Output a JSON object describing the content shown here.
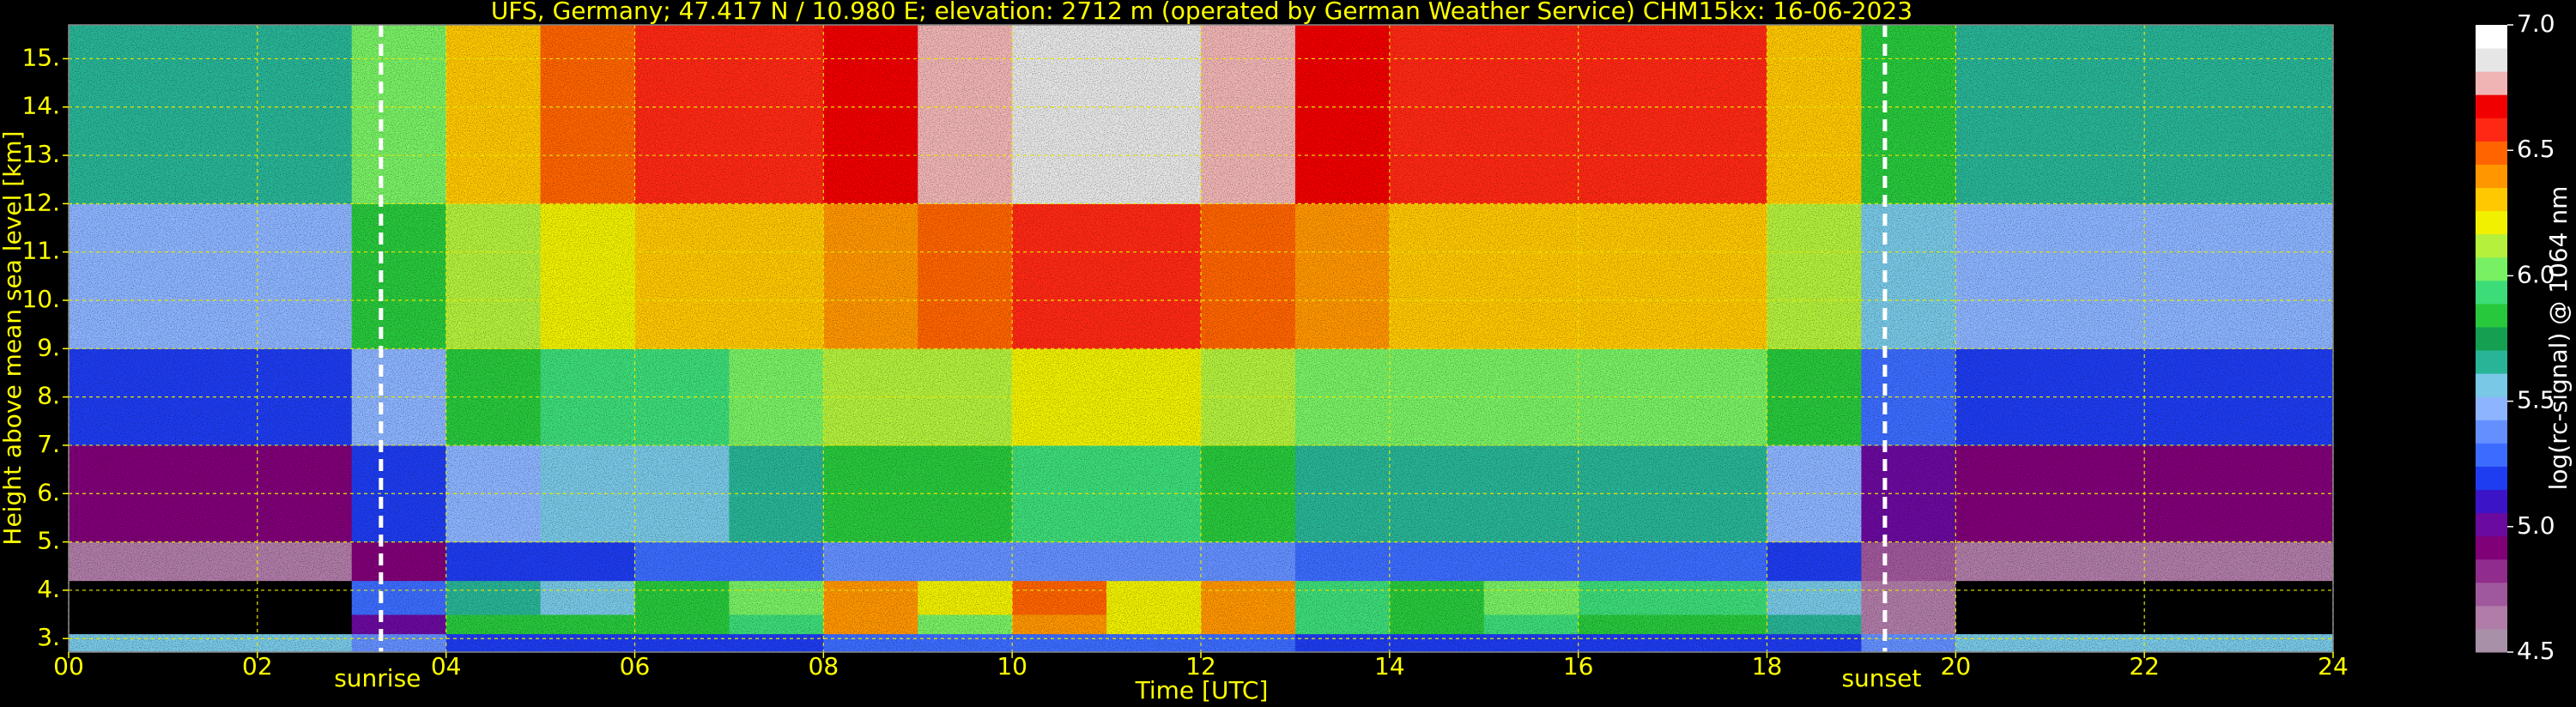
{
  "chart_data": {
    "type": "heatmap",
    "title": "UFS, Germany; 47.417 N / 10.980 E; elevation: 2712 m  (operated by German Weather Service)    CHM15kx: 16-06-2023",
    "xlabel": "Time [UTC]",
    "ylabel": "Height above mean sea level [km]",
    "colorbar_label": "log(rc-signal) @ 1064 nm",
    "xlim": [
      0,
      24
    ],
    "ylim": [
      2.72,
      15.7
    ],
    "xticks": [
      {
        "value": 0,
        "label": "00"
      },
      {
        "value": 2,
        "label": "02"
      },
      {
        "value": 4,
        "label": "04"
      },
      {
        "value": 6,
        "label": "06"
      },
      {
        "value": 8,
        "label": "08"
      },
      10,
      12,
      14,
      16,
      18,
      20,
      22,
      24
    ],
    "yticks": [
      {
        "value": 3,
        "label": "3."
      },
      {
        "value": 4,
        "label": "4."
      },
      {
        "value": 5,
        "label": "5."
      },
      {
        "value": 6,
        "label": "6."
      },
      {
        "value": 7,
        "label": "7."
      },
      {
        "value": 8,
        "label": "8."
      },
      {
        "value": 9,
        "label": "9."
      },
      {
        "value": 10,
        "label": "10."
      },
      {
        "value": 11,
        "label": "11."
      },
      {
        "value": 12,
        "label": "12."
      },
      {
        "value": 13,
        "label": "13."
      },
      {
        "value": 14,
        "label": "14."
      },
      {
        "value": 15,
        "label": "15."
      }
    ],
    "zlim": [
      4.5,
      7.0
    ],
    "zticks": [
      4.5,
      {
        "value": 5,
        "label": "5.0"
      },
      5.5,
      {
        "value": 6,
        "label": "6.0"
      },
      6.5,
      {
        "value": 7,
        "label": "7.0"
      }
    ],
    "grid": true,
    "grid_color": "#e6e600",
    "under_color": "#000000",
    "colormap": [
      "#a890a8",
      "#b07ca8",
      "#a0589c",
      "#902c8c",
      "#800078",
      "#6a0a9e",
      "#3c14c8",
      "#1e3cf0",
      "#3c6cff",
      "#6490ff",
      "#8cb4ff",
      "#78c8e6",
      "#28b496",
      "#14a050",
      "#28c83c",
      "#3cdc78",
      "#78f064",
      "#b4f03c",
      "#f0f000",
      "#ffc800",
      "#ff9600",
      "#ff6400",
      "#ff2814",
      "#f00000",
      "#f0b4b4",
      "#e6e6e6",
      "#ffffff"
    ],
    "x_bins": [
      0,
      1,
      2,
      3,
      4,
      5,
      6,
      7,
      8,
      9,
      10,
      11,
      12,
      13,
      14,
      15,
      16,
      17,
      18,
      19,
      20,
      21,
      22,
      23,
      24
    ],
    "y_bins": [
      2.72,
      3.1,
      3.5,
      4.2,
      5,
      7,
      9,
      12,
      15.7
    ],
    "values": [
      [
        5.6,
        5.6,
        5.6,
        5.4,
        5.2,
        5.2,
        5.2,
        5.2,
        5.3,
        5.3,
        5.3,
        5.3,
        5.3,
        5.2,
        5.2,
        5.2,
        5.2,
        5.2,
        5.2,
        5.4,
        5.6,
        5.6,
        5.6,
        5.6
      ],
      [
        4.4,
        4.4,
        4.4,
        5.0,
        5.8,
        5.8,
        5.8,
        5.9,
        6.4,
        6.0,
        6.4,
        6.2,
        6.4,
        5.9,
        5.8,
        5.9,
        5.8,
        5.8,
        5.7,
        4.6,
        4.4,
        4.4,
        4.4,
        4.4
      ],
      [
        4.4,
        4.4,
        4.4,
        5.3,
        5.7,
        5.6,
        5.8,
        6.0,
        6.4,
        6.2,
        6.5,
        6.2,
        6.4,
        5.9,
        5.8,
        6.0,
        5.9,
        5.9,
        5.6,
        4.6,
        4.4,
        4.4,
        4.4,
        4.4
      ],
      [
        4.6,
        4.6,
        4.6,
        4.9,
        5.2,
        5.2,
        5.3,
        5.3,
        5.4,
        5.4,
        5.4,
        5.4,
        5.4,
        5.3,
        5.3,
        5.3,
        5.3,
        5.3,
        5.2,
        4.7,
        4.6,
        4.6,
        4.6,
        4.6
      ],
      [
        4.9,
        4.9,
        4.9,
        5.2,
        5.5,
        5.6,
        5.6,
        5.7,
        5.8,
        5.8,
        5.9,
        5.9,
        5.8,
        5.7,
        5.7,
        5.7,
        5.7,
        5.7,
        5.5,
        5.0,
        4.9,
        4.9,
        4.9,
        4.9
      ],
      [
        5.2,
        5.2,
        5.2,
        5.5,
        5.8,
        5.9,
        5.9,
        6.0,
        6.1,
        6.1,
        6.2,
        6.2,
        6.1,
        6.0,
        6.0,
        6.0,
        6.0,
        6.0,
        5.8,
        5.3,
        5.2,
        5.2,
        5.2,
        5.2
      ],
      [
        5.5,
        5.5,
        5.5,
        5.8,
        6.1,
        6.2,
        6.3,
        6.3,
        6.4,
        6.5,
        6.6,
        6.6,
        6.5,
        6.4,
        6.3,
        6.3,
        6.3,
        6.3,
        6.1,
        5.6,
        5.5,
        5.5,
        5.5,
        5.5
      ],
      [
        5.7,
        5.7,
        5.7,
        6.0,
        6.3,
        6.5,
        6.6,
        6.6,
        6.7,
        6.8,
        6.9,
        6.9,
        6.8,
        6.7,
        6.6,
        6.6,
        6.6,
        6.6,
        6.3,
        5.8,
        5.7,
        5.7,
        5.7,
        5.7
      ]
    ],
    "annotations": [
      {
        "text": "sunrise",
        "x": 3.31,
        "color": "#ffffff"
      },
      {
        "text": "sunset",
        "x": 19.25,
        "color": "#ffffff"
      }
    ]
  }
}
